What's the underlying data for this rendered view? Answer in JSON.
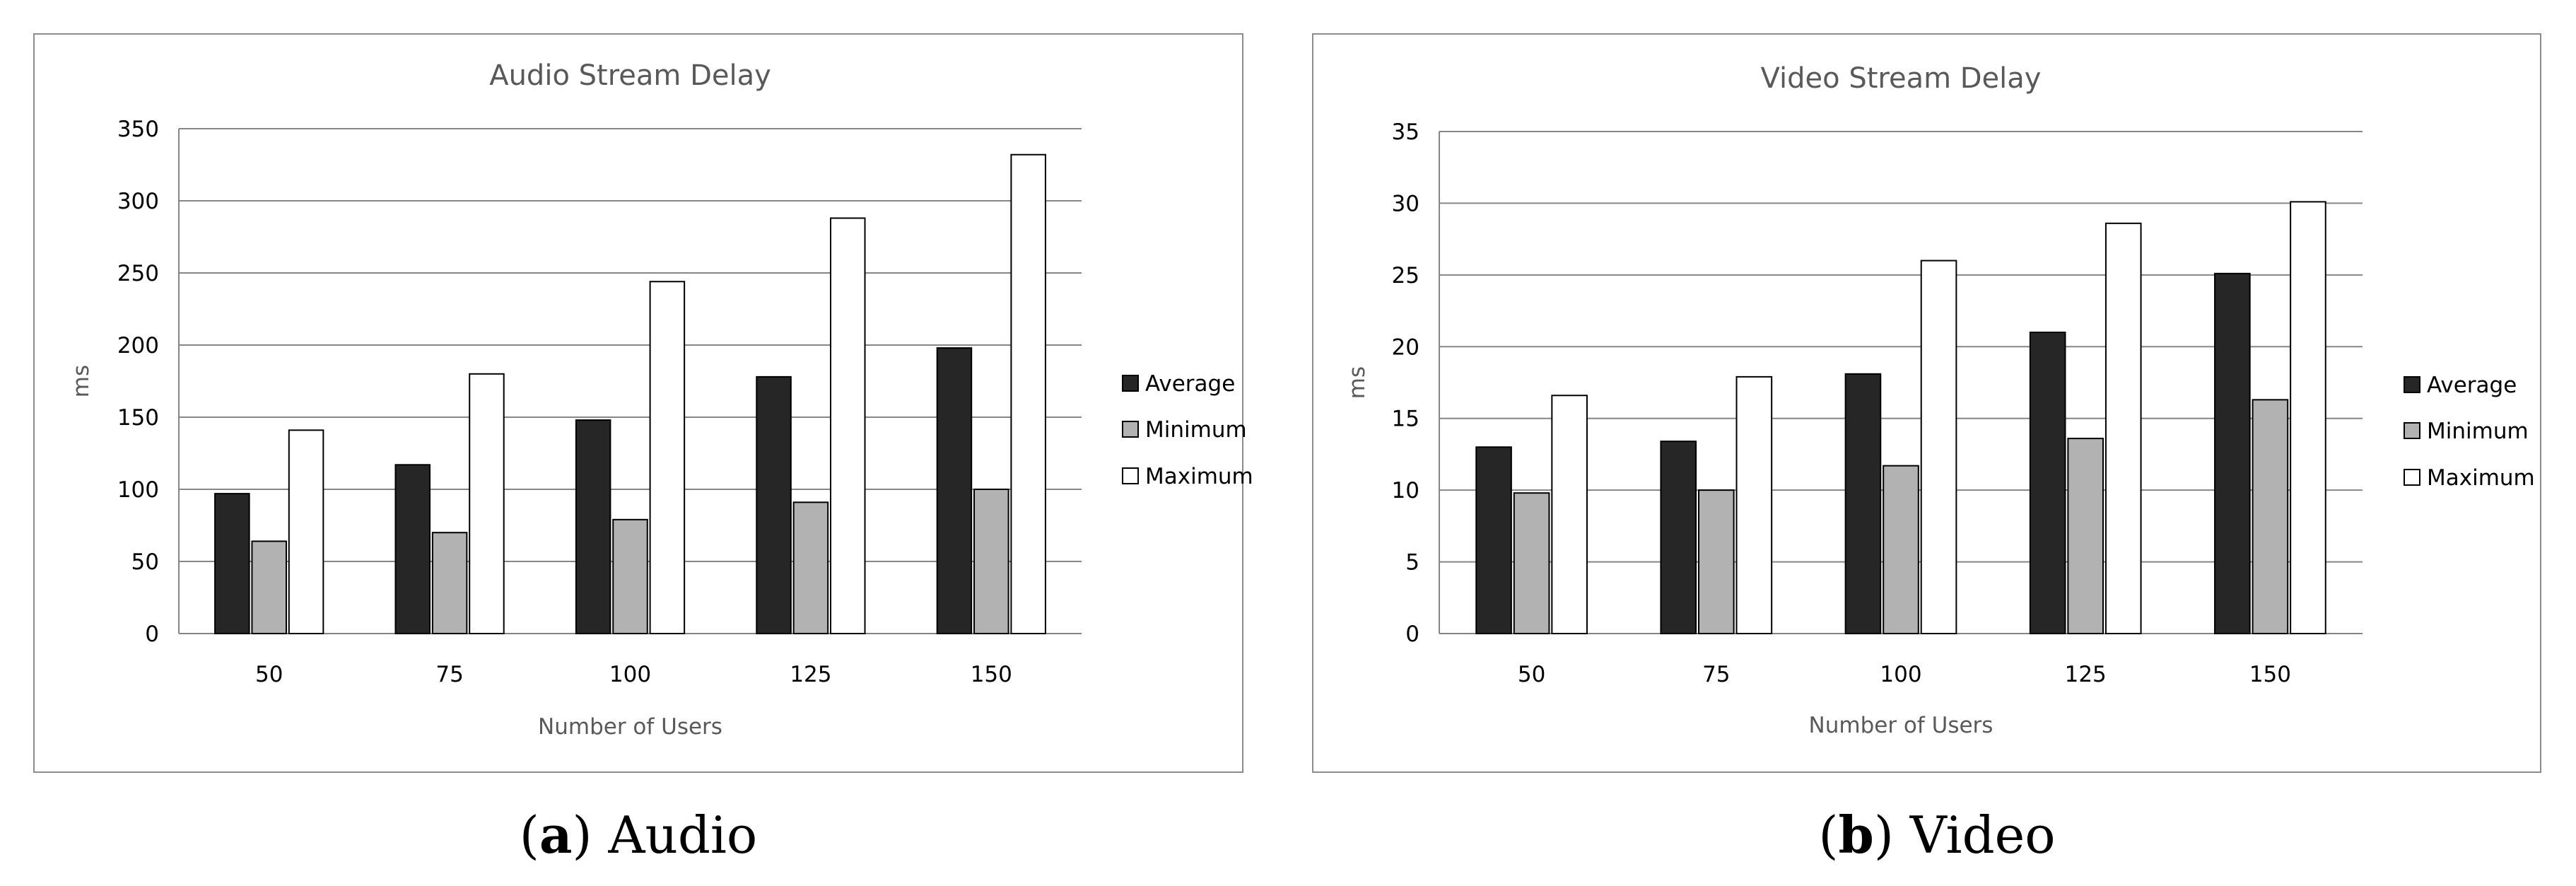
{
  "colors": {
    "average": "#262626",
    "minimum": "#b2b2b2",
    "maximum": "#ffffff",
    "grid": "#868686",
    "frame": "#8c8c8c"
  },
  "chart_data": [
    {
      "type": "bar",
      "title": "Audio Stream Delay",
      "xlabel": "Number of Users",
      "ylabel": "ms",
      "categories": [
        "50",
        "75",
        "100",
        "125",
        "150"
      ],
      "yticks": [
        "0",
        "50",
        "100",
        "150",
        "200",
        "250",
        "300",
        "350"
      ],
      "ylim": [
        0,
        350
      ],
      "grid": true,
      "legend_position": "right",
      "series": [
        {
          "name": "Average",
          "values": [
            97,
            117,
            148,
            178,
            198
          ]
        },
        {
          "name": "Minimum",
          "values": [
            64,
            70,
            79,
            91,
            100
          ]
        },
        {
          "name": "Maximum",
          "values": [
            141,
            180,
            244,
            288,
            332
          ]
        }
      ],
      "caption": {
        "letter": "a",
        "text": "Audio"
      }
    },
    {
      "type": "bar",
      "title": "Video Stream Delay",
      "xlabel": "Number of Users",
      "ylabel": "ms",
      "categories": [
        "50",
        "75",
        "100",
        "125",
        "150"
      ],
      "yticks": [
        "0",
        "5",
        "10",
        "15",
        "20",
        "25",
        "30",
        "35"
      ],
      "ylim": [
        0,
        35
      ],
      "grid": true,
      "legend_position": "right",
      "series": [
        {
          "name": "Average",
          "values": [
            13,
            13.4,
            18.1,
            21,
            25.1
          ]
        },
        {
          "name": "Minimum",
          "values": [
            9.8,
            10,
            11.7,
            13.6,
            16.3
          ]
        },
        {
          "name": "Maximum",
          "values": [
            16.6,
            17.9,
            26,
            28.6,
            30.1
          ]
        }
      ],
      "caption": {
        "letter": "b",
        "text": "Video"
      }
    }
  ]
}
